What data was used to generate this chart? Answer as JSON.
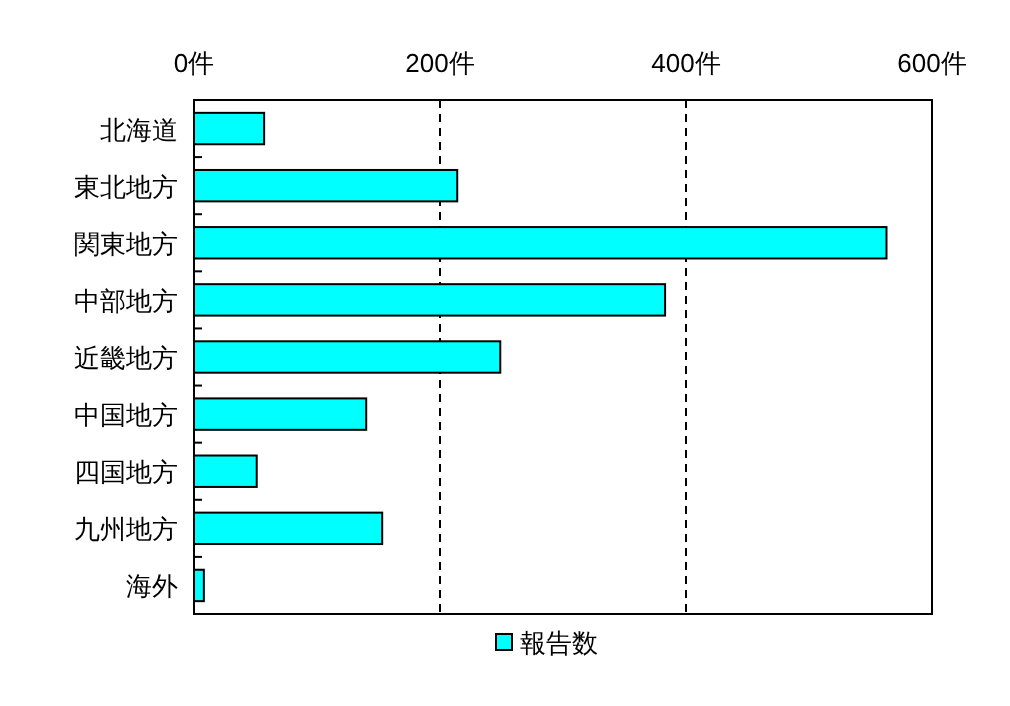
{
  "chart_data": {
    "type": "bar",
    "orientation": "horizontal",
    "categories": [
      "北海道",
      "東北地方",
      "関東地方",
      "中部地方",
      "近畿地方",
      "中国地方",
      "四国地方",
      "九州地方",
      "海外"
    ],
    "series": [
      {
        "name": "報告数",
        "color": "#00ffff",
        "values": [
          57,
          214,
          563,
          383,
          249,
          140,
          51,
          153,
          8
        ]
      }
    ],
    "xlim": [
      0,
      600
    ],
    "xticks": [
      {
        "value": 0,
        "label": "0件"
      },
      {
        "value": 200,
        "label": "200件"
      },
      {
        "value": 400,
        "label": "400件"
      },
      {
        "value": 600,
        "label": "600件"
      }
    ],
    "grid": "x",
    "legend": "bottom"
  }
}
